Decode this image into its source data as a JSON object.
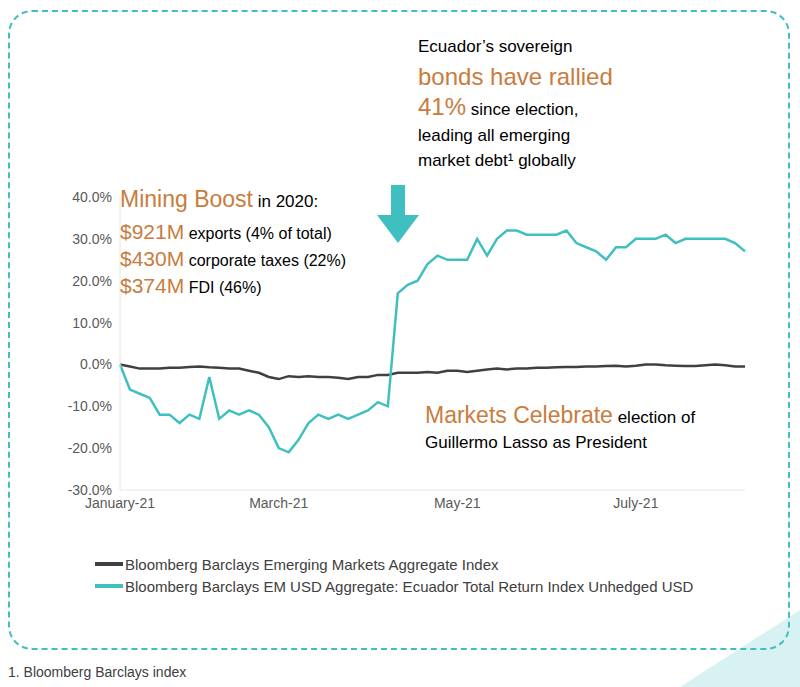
{
  "chart_data": {
    "type": "line",
    "categories": [
      "January-21",
      null,
      null,
      null,
      null,
      null,
      null,
      null,
      null,
      null,
      null,
      null,
      null,
      null,
      null,
      null,
      "March-21",
      null,
      null,
      null,
      null,
      null,
      null,
      null,
      null,
      null,
      null,
      null,
      null,
      null,
      null,
      null,
      null,
      null,
      "May-21",
      null,
      null,
      null,
      null,
      null,
      null,
      null,
      null,
      null,
      null,
      null,
      null,
      null,
      null,
      null,
      null,
      null,
      "July-21",
      null,
      null,
      null,
      null,
      null,
      null,
      null,
      null,
      null,
      null,
      null
    ],
    "series": [
      {
        "name": "Bloomberg Barclays Emerging Markets Aggregate Index",
        "color": "#404040",
        "values": [
          0,
          -0.5,
          -1,
          -1,
          -1,
          -0.8,
          -0.8,
          -0.6,
          -0.5,
          -0.7,
          -0.8,
          -1,
          -1,
          -1.5,
          -2,
          -3,
          -3.5,
          -2.8,
          -3,
          -2.8,
          -3,
          -3,
          -3.2,
          -3.5,
          -3,
          -3,
          -2.5,
          -2.5,
          -2,
          -2,
          -2,
          -1.8,
          -2,
          -1.5,
          -1.5,
          -1.8,
          -1.5,
          -1.2,
          -1,
          -1.2,
          -1,
          -1,
          -0.8,
          -0.8,
          -0.7,
          -0.6,
          -0.6,
          -0.5,
          -0.5,
          -0.4,
          -0.3,
          -0.5,
          -0.3,
          0,
          0,
          -0.2,
          -0.3,
          -0.4,
          -0.4,
          -0.2,
          0,
          -0.2,
          -0.5,
          -0.5
        ]
      },
      {
        "name": "Bloomberg Barclays EM USD Aggregate: Ecuador Total Return Index Unhedged USD",
        "color": "#40bfc1",
        "values": [
          0,
          -6,
          -7,
          -8,
          -12,
          -12,
          -14,
          -12,
          -13,
          -3,
          -13,
          -11,
          -12,
          -11,
          -12,
          -15,
          -20,
          -21,
          -18,
          -14,
          -12,
          -13,
          -12,
          -13,
          -12,
          -11,
          -9,
          -10,
          17,
          19,
          20,
          24,
          26,
          25,
          25,
          25,
          30,
          26,
          30,
          32,
          32,
          31,
          31,
          31,
          31,
          32,
          29,
          28,
          27,
          25,
          28,
          28,
          30,
          30,
          30,
          31,
          29,
          30,
          30,
          30,
          30,
          30,
          29,
          27
        ]
      }
    ],
    "ylim": [
      -30,
      40
    ],
    "yticks": [
      {
        "value": -30,
        "label": "-30.0%"
      },
      {
        "value": -20,
        "label": "-20.0%"
      },
      {
        "value": -10,
        "label": "-10.0%"
      },
      {
        "value": 0,
        "label": "0.0%"
      },
      {
        "value": 10,
        "label": "10.0%"
      },
      {
        "value": 20,
        "label": "20.0%"
      },
      {
        "value": 30,
        "label": "30.0%"
      },
      {
        "value": 40,
        "label": "40.0%"
      }
    ],
    "grid": false,
    "legend": "bottom",
    "annotations": [
      {
        "lines": [
          [
            {
              "text": "Ecuador’s sovereign",
              "color": "#000000"
            }
          ],
          [
            {
              "text": "bonds have rallied",
              "color": "#c97c3d"
            }
          ],
          [
            {
              "text": "41%",
              "color": "#c97c3d"
            },
            {
              "text": " since election,",
              "color": "#000000"
            }
          ],
          [
            {
              "text": "leading all emerging",
              "color": "#000000"
            }
          ],
          [
            {
              "text": "market debt¹ globally",
              "color": "#000000"
            }
          ]
        ]
      },
      {
        "lines": [
          [
            {
              "text": "Mining Boost",
              "color": "#c97c3d"
            },
            {
              "text": " in 2020:",
              "color": "#000000"
            }
          ],
          [
            {
              "text": "$921M",
              "color": "#c97c3d"
            },
            {
              "text": " exports (4% of total)",
              "color": "#000000"
            }
          ],
          [
            {
              "text": "$430M",
              "color": "#c97c3d"
            },
            {
              "text": " corporate taxes (22%)",
              "color": "#000000"
            }
          ],
          [
            {
              "text": "$374M",
              "color": "#c97c3d"
            },
            {
              "text": " FDI (46%)",
              "color": "#000000"
            }
          ]
        ]
      },
      {
        "lines": [
          [
            {
              "text": "Markets Celebrate",
              "color": "#c97c3d"
            },
            {
              "text": " election of",
              "color": "#000000"
            }
          ],
          [
            {
              "text": "Guillermo Lasso as President",
              "color": "#000000"
            }
          ]
        ]
      }
    ],
    "footnote": "1. Bloomberg Barclays index"
  }
}
